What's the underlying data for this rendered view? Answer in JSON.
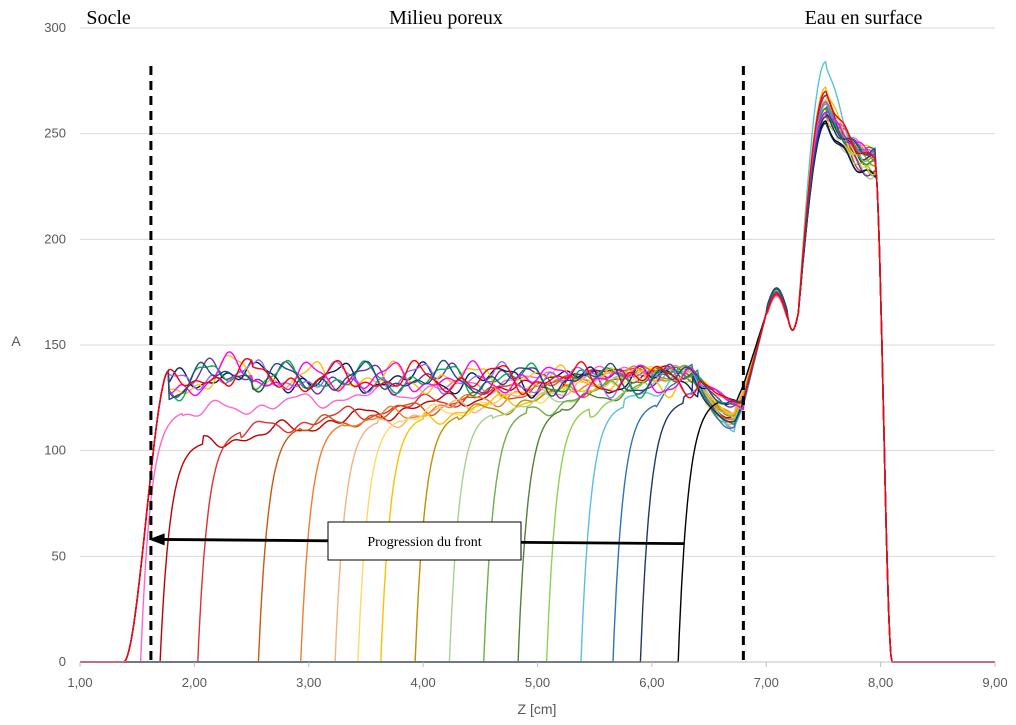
{
  "chart_data": {
    "type": "line",
    "title": "",
    "xlabel": "Z [cm]",
    "ylabel": "A",
    "xlim": [
      1,
      9
    ],
    "ylim": [
      0,
      300
    ],
    "x_ticks": [
      "1,00",
      "2,00",
      "3,00",
      "4,00",
      "5,00",
      "6,00",
      "7,00",
      "8,00",
      "9,00"
    ],
    "y_ticks": [
      "0",
      "50",
      "100",
      "150",
      "200",
      "250",
      "300"
    ],
    "grid": "horizontal",
    "legend": "none",
    "region_labels": [
      {
        "text": "Socle",
        "x": 1.25
      },
      {
        "text": "Milieu poreux",
        "x": 4.2
      },
      {
        "text": "Eau en surface",
        "x": 7.85
      }
    ],
    "boundaries": [
      1.62,
      6.8
    ],
    "annotation": {
      "text": "Progression du front",
      "arrow_from": {
        "x": 6.28,
        "y": 56
      },
      "arrow_to": {
        "x": 1.6,
        "y": 58
      }
    },
    "front_series": [
      {
        "front": 1.55,
        "color": "#ff66cc",
        "plateau": 128,
        "peak": 262,
        "bowl": 113
      },
      {
        "front": 1.72,
        "color": "#c00000",
        "plateau": 112,
        "peak": 268,
        "bowl": 116
      },
      {
        "front": 2.05,
        "color": "#e03030",
        "plateau": 118,
        "peak": 265,
        "bowl": 115
      },
      {
        "front": 2.58,
        "color": "#c55a11",
        "plateau": 120,
        "peak": 262,
        "bowl": 114
      },
      {
        "front": 2.95,
        "color": "#ed7d31",
        "plateau": 122,
        "peak": 255,
        "bowl": 118
      },
      {
        "front": 3.25,
        "color": "#f4b183",
        "plateau": 123,
        "peak": 258,
        "bowl": 119
      },
      {
        "front": 3.45,
        "color": "#ffd966",
        "plateau": 124,
        "peak": 270,
        "bowl": 112
      },
      {
        "front": 3.65,
        "color": "#ffc000",
        "plateau": 125,
        "peak": 266,
        "bowl": 117
      },
      {
        "front": 3.95,
        "color": "#bf9000",
        "plateau": 126,
        "peak": 260,
        "bowl": 116
      },
      {
        "front": 4.25,
        "color": "#a9d18e",
        "plateau": 127,
        "peak": 268,
        "bowl": 114
      },
      {
        "front": 4.55,
        "color": "#70ad47",
        "plateau": 128,
        "peak": 264,
        "bowl": 113
      },
      {
        "front": 4.85,
        "color": "#548235",
        "plateau": 129,
        "peak": 262,
        "bowl": 112
      },
      {
        "front": 5.1,
        "color": "#92d050",
        "plateau": 130,
        "peak": 259,
        "bowl": 115
      },
      {
        "front": 5.4,
        "color": "#5bc0de",
        "plateau": 131,
        "peak": 284,
        "bowl": 111
      },
      {
        "front": 5.68,
        "color": "#2e75b6",
        "plateau": 132,
        "peak": 260,
        "bowl": 112
      },
      {
        "front": 5.92,
        "color": "#1f3864",
        "plateau": 133,
        "peak": 258,
        "bowl": 113
      },
      {
        "front": 6.25,
        "color": "#000000",
        "plateau": 134,
        "peak": 256,
        "bowl": 121
      }
    ],
    "saturated_series": [
      {
        "color": "#7030a0",
        "peak": 268
      },
      {
        "color": "#002060",
        "peak": 255
      },
      {
        "color": "#ffc000",
        "peak": 272
      },
      {
        "color": "#00b050",
        "peak": 262
      },
      {
        "color": "#9966ff",
        "peak": 265
      },
      {
        "color": "#ff00ff",
        "peak": 260
      },
      {
        "color": "#1f4e79",
        "peak": 258
      },
      {
        "color": "#ff0000",
        "peak": 270
      }
    ]
  }
}
